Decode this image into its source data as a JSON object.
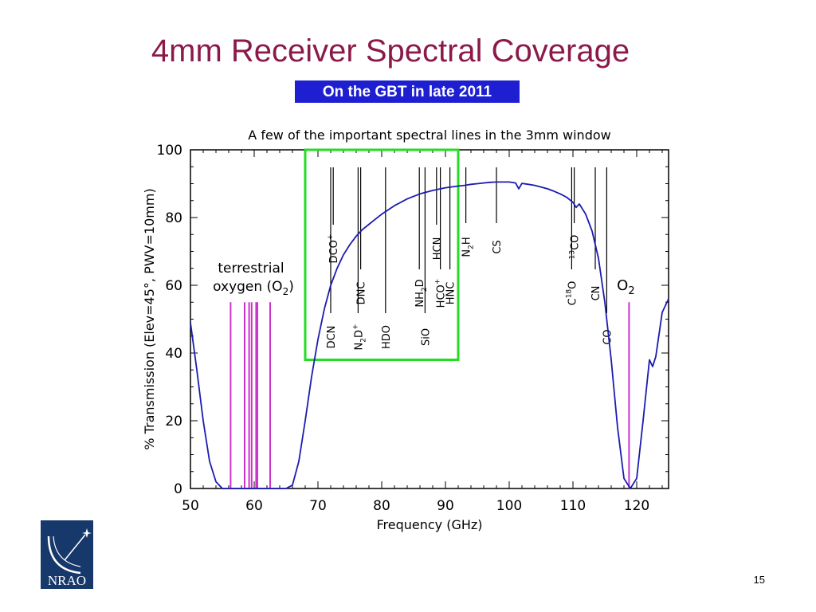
{
  "slide": {
    "title": "4mm Receiver Spectral Coverage",
    "subtitle": "On the GBT in late 2011",
    "page_number": "15"
  },
  "logo": {
    "text": "NRAO",
    "icon": "nrao-logo-icon"
  },
  "colors": {
    "title": "#8b1a4a",
    "subtitle_bg": "#1f1fd2",
    "curve": "#1b1bb0",
    "oxygen_lines": "#cc33cc",
    "highlight_box": "#22dd22",
    "logo_bg": "#16386b"
  },
  "chart_data": {
    "type": "line",
    "title": "A few of the important spectral lines in the 3mm window",
    "xlabel": "Frequency (GHz)",
    "ylabel": "% Transmission (Elev=45°, PWV=10mm)",
    "xlim": [
      50,
      125
    ],
    "ylim": [
      0,
      100
    ],
    "xticks": [
      "50",
      "60",
      "70",
      "80",
      "90",
      "100",
      "110",
      "120"
    ],
    "yticks": [
      "0",
      "20",
      "40",
      "60",
      "80",
      "100"
    ],
    "grid": false,
    "series": [
      {
        "x": [
          50,
          51,
          52,
          53,
          54,
          55,
          56,
          57,
          58,
          59,
          60,
          61,
          62,
          63,
          64,
          65,
          66,
          67,
          68,
          69,
          70,
          71,
          72,
          73,
          74,
          75,
          76,
          77,
          78,
          79,
          80,
          82,
          84,
          86,
          88,
          90,
          92,
          93,
          94,
          95,
          96,
          97,
          98,
          99,
          100,
          101,
          101.5,
          102,
          103,
          104,
          105,
          106,
          107,
          108,
          109,
          110,
          110.5,
          111,
          112,
          113,
          114,
          115,
          116,
          117,
          118,
          119,
          120,
          121,
          122,
          122.5,
          123,
          124,
          125
        ],
        "y": [
          49,
          35,
          20,
          8,
          2,
          0,
          0,
          0,
          0,
          0,
          0,
          0,
          0,
          0,
          0,
          0,
          1,
          8,
          20,
          33,
          44,
          53,
          60,
          65,
          69,
          72,
          74.5,
          76.5,
          78,
          79.5,
          81,
          83.5,
          85.5,
          87,
          88,
          88.8,
          89.3,
          89.5,
          89.8,
          90,
          90.2,
          90.4,
          90.5,
          90.5,
          90.5,
          90.2,
          88.5,
          90.1,
          89.8,
          89.5,
          89,
          88.5,
          87.8,
          87,
          86,
          84.5,
          83,
          84,
          81,
          76,
          68,
          55,
          38,
          18,
          3,
          0,
          3,
          20,
          38,
          36,
          39,
          52,
          56
        ]
      }
    ],
    "oxygen_lines": {
      "label_line1": "terrestrial",
      "label_line2": "oxygen (O",
      "label_sub": "2",
      "label_close": ")",
      "freqs": [
        56.3,
        58.5,
        59.2,
        59.6,
        60.3,
        60.5,
        62.5
      ],
      "height": 55,
      "o2_freq": 118.8,
      "o2_label": "O",
      "o2_sub": "2"
    },
    "highlight_box": {
      "x": [
        68,
        92
      ],
      "y": [
        38,
        100
      ]
    },
    "spectral_lines": [
      {
        "freq": 72.0,
        "label": "DCN",
        "label_pos": "low"
      },
      {
        "freq": 72.4,
        "label": "DCO",
        "sup": "+",
        "label_pos": "high"
      },
      {
        "freq": 76.3,
        "label": "N",
        "sub": "2",
        "tail": "D",
        "sup": "+",
        "label_pos": "low"
      },
      {
        "freq": 76.7,
        "label": "DNC",
        "label_pos": "mid"
      },
      {
        "freq": 80.6,
        "label": "HDO",
        "label_pos": "low"
      },
      {
        "freq": 85.9,
        "label": "NH",
        "sub": "2",
        "tail": "D",
        "label_pos": "mid"
      },
      {
        "freq": 86.8,
        "label": "SiO",
        "label_pos": "low"
      },
      {
        "freq": 88.6,
        "label": "HCN",
        "label_pos": "high"
      },
      {
        "freq": 89.2,
        "label": "HCO",
        "sup": "+",
        "label_pos": "mid"
      },
      {
        "freq": 90.7,
        "label": "HNC",
        "label_pos": "mid"
      },
      {
        "freq": 93.2,
        "label": "N",
        "sub": "2",
        "tail": "H",
        "label_pos": "top"
      },
      {
        "freq": 98.0,
        "label": "CS",
        "label_pos": "top"
      },
      {
        "freq": 109.8,
        "label": "C",
        "sup": "18",
        "tail": "O",
        "label_pos": "mid"
      },
      {
        "freq": 110.2,
        "label": "CO",
        "pre_sup": "13",
        "label_pos": "top"
      },
      {
        "freq": 113.5,
        "label": "CN",
        "label_pos": "mid"
      },
      {
        "freq": 115.3,
        "label": "CO",
        "label_pos": "low"
      }
    ]
  }
}
